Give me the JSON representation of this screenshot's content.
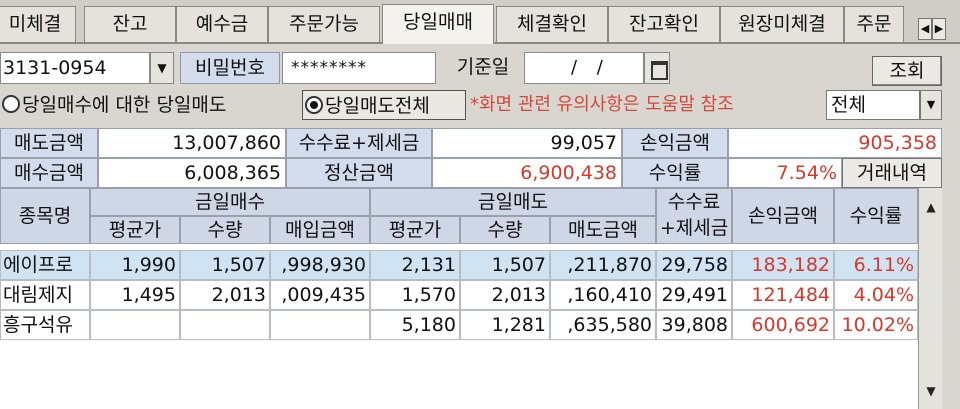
{
  "tabs": [
    "미체결",
    "잔고",
    "예수금",
    "주문가능",
    "당일매매",
    "체결확인",
    "잔고확인",
    "원장미체결",
    "주문"
  ],
  "tab_arrows": [
    "◀",
    "▶"
  ],
  "account": {
    "number": "3131-0954",
    "dropdown": "▼"
  },
  "password": {
    "label": "비밀번호",
    "value": "********"
  },
  "base_date": {
    "label": "기준일",
    "value": "/ /"
  },
  "query_button": "조회",
  "radios": {
    "option1": "당일매수에 대한 당일매도",
    "option2": "당일매도전체",
    "selected": 2
  },
  "notice": "*화면 관련 유의사항은 도움말 참조",
  "filter": {
    "value": "전체",
    "dropdown": "▼"
  },
  "summary": {
    "sell_amount_label": "매도금액",
    "sell_amount": "13,007,860",
    "fee_tax_label": "수수료+제세금",
    "fee_tax": "99,057",
    "pnl_label": "손익금액",
    "pnl": "905,358",
    "buy_amount_label": "매수금액",
    "buy_amount": "6,008,365",
    "settle_label": "정산금액",
    "settle": "6,900,438",
    "rate_label": "수익률",
    "rate": "7.54%",
    "history_button": "거래내역"
  },
  "table": {
    "headers": {
      "stock": "종목명",
      "buy_group": "금일매수",
      "sell_group": "금일매도",
      "buy_avg": "평균가",
      "buy_qty": "수량",
      "buy_amount": "매입금액",
      "sell_avg": "평균가",
      "sell_qty": "수량",
      "sell_amount": "매도금액",
      "fee_line1": "수수료",
      "fee_line2": "+제세금",
      "pnl": "손익금액",
      "rate": "수익률"
    },
    "rows": [
      {
        "name": "에이프로",
        "buy_avg": "1,990",
        "buy_qty": "1,507",
        "buy_amount": ",998,930",
        "sell_avg": "2,131",
        "sell_qty": "1,507",
        "sell_amount": ",211,870",
        "fee": "29,758",
        "pnl": "183,182",
        "rate": "6.11%"
      },
      {
        "name": "대림제지",
        "buy_avg": "1,495",
        "buy_qty": "2,013",
        "buy_amount": ",009,435",
        "sell_avg": "1,570",
        "sell_qty": "2,013",
        "sell_amount": ",160,410",
        "fee": "29,491",
        "pnl": "121,484",
        "rate": "4.04%"
      },
      {
        "name": "흥구석유",
        "buy_avg": "",
        "buy_qty": "",
        "buy_amount": "",
        "sell_avg": "5,180",
        "sell_qty": "1,281",
        "sell_amount": ",635,580",
        "fee": "39,808",
        "pnl": "600,692",
        "rate": "10.02%"
      }
    ]
  },
  "scroll": {
    "up": "▲",
    "down": "▼"
  },
  "colors": {
    "label_bg": "#d3dcec",
    "selected_row": "#cfe3f2",
    "negative_text": "#d4392c"
  }
}
